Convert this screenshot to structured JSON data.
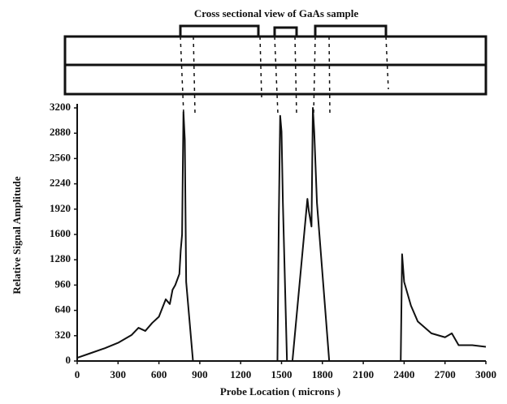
{
  "chart_data": {
    "type": "line",
    "title": "Cross sectional view of GaAs sample",
    "x_label": "Probe Location ( microns )",
    "y_label": "Relative Signal Amplitude",
    "x": [
      0,
      100,
      200,
      300,
      400,
      450,
      500,
      550,
      600,
      650,
      680,
      700,
      720,
      750,
      760,
      770,
      780,
      790,
      800,
      850,
      1200,
      1470,
      1480,
      1490,
      1500,
      1510,
      1540,
      1580,
      1690,
      1700,
      1720,
      1730,
      1740,
      1760,
      1850,
      2375,
      2385,
      2400,
      2450,
      2500,
      2600,
      2700,
      2750,
      2800,
      2900,
      3000
    ],
    "series": [
      {
        "name": "Relative Signal Amplitude",
        "color": "#111111",
        "values": [
          40,
          100,
          160,
          230,
          330,
          420,
          380,
          480,
          560,
          780,
          720,
          900,
          960,
          1100,
          1400,
          1600,
          3150,
          2800,
          1000,
          0,
          0,
          0,
          1800,
          3100,
          2900,
          2000,
          0,
          0,
          2050,
          1900,
          1700,
          3200,
          2900,
          2000,
          0,
          0,
          1350,
          1000,
          700,
          500,
          350,
          300,
          350,
          200,
          200,
          180
        ]
      }
    ],
    "xlim": [
      0,
      3000
    ],
    "xticks": [
      0,
      300,
      600,
      900,
      1200,
      1500,
      1800,
      2100,
      2400,
      2700,
      3000
    ],
    "ylim": [
      0,
      3200
    ],
    "yticks": [
      0,
      320,
      640,
      960,
      1280,
      1600,
      1920,
      2240,
      2560,
      2880,
      3200
    ],
    "grid": false
  }
}
